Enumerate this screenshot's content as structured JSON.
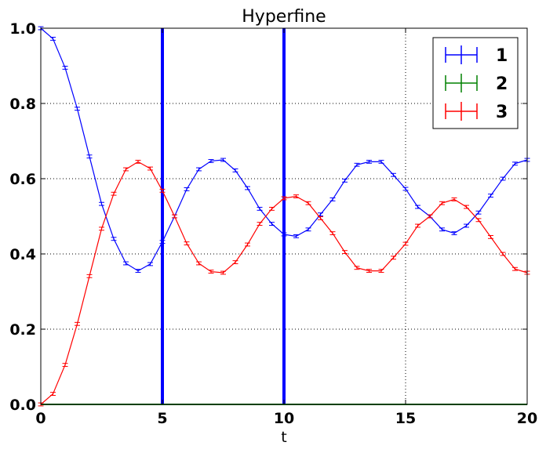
{
  "chart_data": {
    "type": "line",
    "title": "Hyperfine",
    "xlabel": "t",
    "ylabel": "",
    "xlim": [
      0,
      20
    ],
    "ylim": [
      0,
      1.0
    ],
    "x_ticks": [
      "0",
      "5",
      "10",
      "15",
      "20"
    ],
    "y_ticks": [
      "0.0",
      "0.2",
      "0.4",
      "0.6",
      "0.8",
      "1.0"
    ],
    "grid": true,
    "legend_position": "top-right",
    "vertical_lines": [
      5,
      10
    ],
    "x": [
      0,
      0.5,
      1,
      1.5,
      2,
      2.5,
      3,
      3.5,
      4,
      4.5,
      5,
      5.5,
      6,
      6.5,
      7,
      7.5,
      8,
      8.5,
      9,
      9.5,
      10,
      10.5,
      11,
      11.5,
      12,
      12.5,
      13,
      13.5,
      14,
      14.5,
      15,
      15.5,
      16,
      16.5,
      17,
      17.5,
      18,
      18.5,
      19,
      19.5,
      20
    ],
    "series": [
      {
        "name": "1",
        "color": "#0000ff",
        "values": [
          1.0,
          0.972,
          0.895,
          0.786,
          0.659,
          0.533,
          0.44,
          0.375,
          0.355,
          0.373,
          0.432,
          0.5,
          0.572,
          0.625,
          0.647,
          0.65,
          0.622,
          0.575,
          0.52,
          0.48,
          0.452,
          0.447,
          0.465,
          0.505,
          0.545,
          0.595,
          0.637,
          0.645,
          0.645,
          0.61,
          0.573,
          0.525,
          0.5,
          0.465,
          0.455,
          0.475,
          0.51,
          0.555,
          0.6,
          0.64,
          0.65
        ],
        "error": 0.004
      },
      {
        "name": "2",
        "color": "#008000",
        "values": [
          0.0,
          0.0,
          0.0,
          0.0,
          0.0,
          0.0,
          0.0,
          0.0,
          0.0,
          0.0,
          0.0,
          0.0,
          0.0,
          0.0,
          0.0,
          0.0,
          0.0,
          0.0,
          0.0,
          0.0,
          0.0,
          0.0,
          0.0,
          0.0,
          0.0,
          0.0,
          0.0,
          0.0,
          0.0,
          0.0,
          0.0,
          0.0,
          0.0,
          0.0,
          0.0,
          0.0,
          0.0,
          0.0,
          0.0,
          0.0,
          0.0
        ],
        "error": 0.0
      },
      {
        "name": "3",
        "color": "#ff0000",
        "values": [
          0.0,
          0.028,
          0.105,
          0.214,
          0.341,
          0.467,
          0.56,
          0.625,
          0.645,
          0.627,
          0.568,
          0.5,
          0.428,
          0.375,
          0.353,
          0.35,
          0.378,
          0.425,
          0.48,
          0.52,
          0.548,
          0.553,
          0.535,
          0.495,
          0.455,
          0.405,
          0.363,
          0.355,
          0.355,
          0.39,
          0.427,
          0.475,
          0.5,
          0.535,
          0.545,
          0.525,
          0.49,
          0.445,
          0.4,
          0.36,
          0.35
        ],
        "error": 0.004
      }
    ]
  }
}
